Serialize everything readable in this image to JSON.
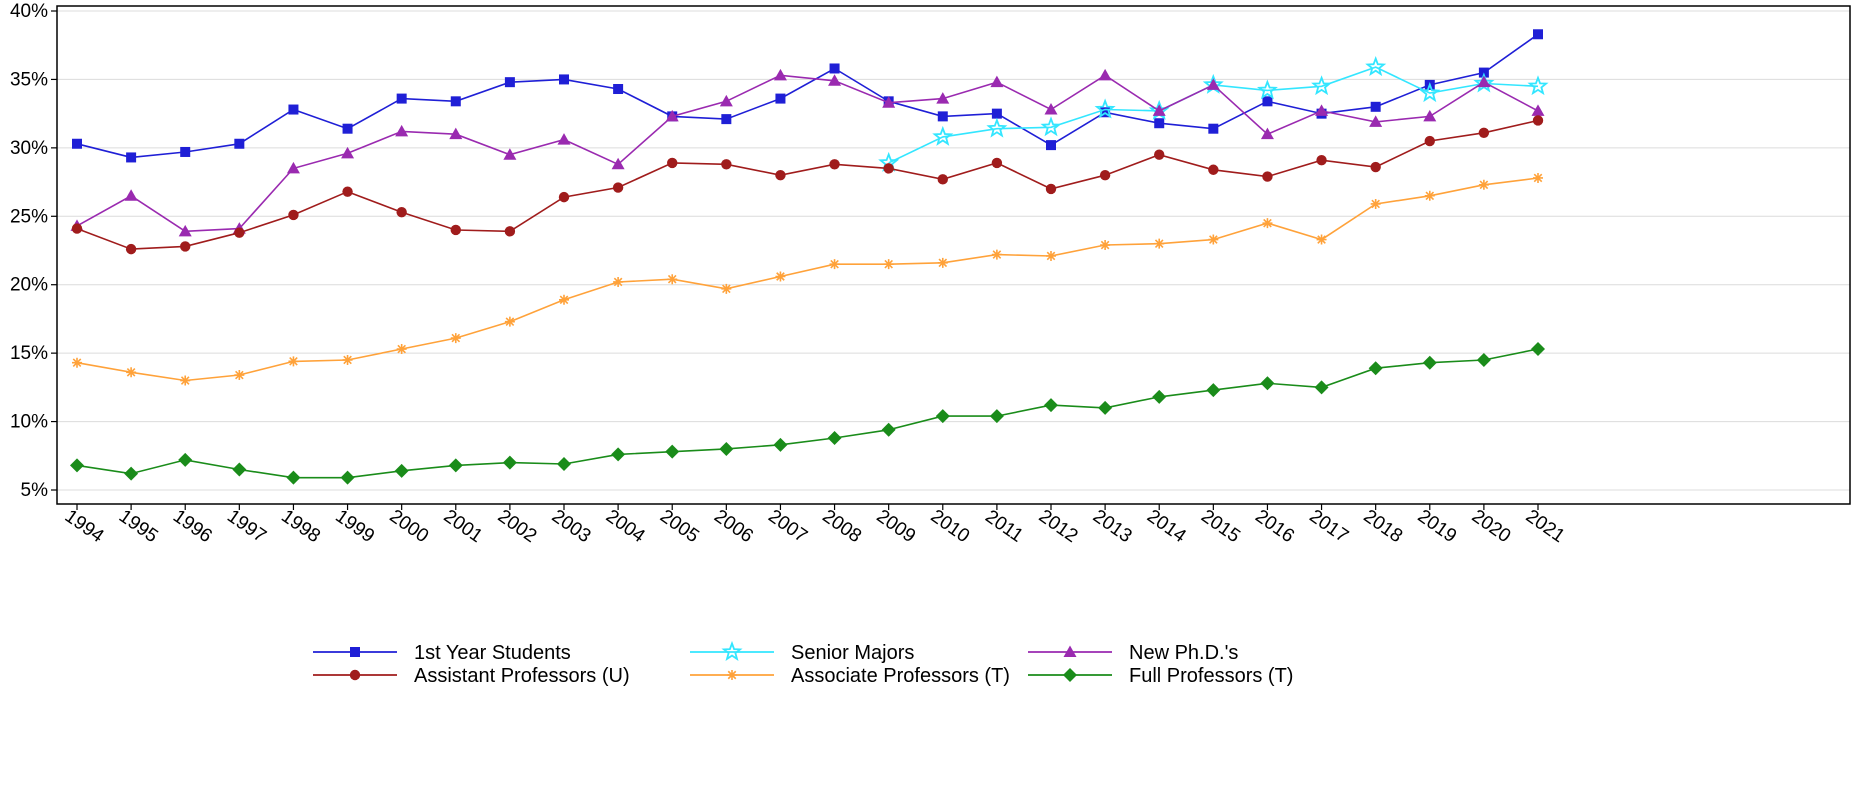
{
  "chart_data": {
    "type": "line",
    "title": "",
    "xlabel": "",
    "ylabel": "",
    "ylim": [
      5,
      40
    ],
    "yticks": [
      "5%",
      "10%",
      "15%",
      "20%",
      "25%",
      "30%",
      "35%",
      "40%"
    ],
    "grid": true,
    "legend_position": "bottom",
    "x": [
      "1994",
      "1995",
      "1996",
      "1997",
      "1998",
      "1999",
      "2000",
      "2001",
      "2002",
      "2003",
      "2004",
      "2005",
      "2006",
      "2007",
      "2008",
      "2009",
      "2010",
      "2011",
      "2012",
      "2013",
      "2014",
      "2015",
      "2016",
      "2017",
      "2018",
      "2019",
      "2020",
      "2021"
    ],
    "series": [
      {
        "name": "1st Year Students",
        "color": "#1f1fd6",
        "marker": "square",
        "values": [
          30.3,
          29.3,
          29.7,
          30.3,
          32.8,
          31.4,
          33.6,
          33.4,
          34.8,
          35.0,
          34.3,
          32.3,
          32.1,
          33.6,
          35.8,
          33.4,
          32.3,
          32.5,
          30.2,
          32.6,
          31.8,
          31.4,
          33.4,
          32.5,
          33.0,
          34.6,
          35.5,
          38.3
        ]
      },
      {
        "name": "Senior Majors",
        "color": "#33e6ff",
        "marker": "star",
        "values": [
          null,
          null,
          null,
          null,
          null,
          null,
          null,
          null,
          null,
          null,
          null,
          null,
          null,
          null,
          null,
          28.9,
          30.8,
          31.4,
          31.5,
          32.8,
          32.7,
          34.6,
          34.2,
          34.5,
          35.9,
          34.0,
          34.7,
          34.5
        ]
      },
      {
        "name": "New Ph.D.'s",
        "color": "#9a2ab0",
        "marker": "triangle",
        "values": [
          24.3,
          26.5,
          23.9,
          24.1,
          28.5,
          29.6,
          31.2,
          31.0,
          29.5,
          30.6,
          28.8,
          32.3,
          33.4,
          35.3,
          34.9,
          33.3,
          33.6,
          34.8,
          32.8,
          35.3,
          32.7,
          34.6,
          31.0,
          32.7,
          31.9,
          32.3,
          34.8,
          32.7
        ]
      },
      {
        "name": "Assistant Professors (U)",
        "color": "#a01c1c",
        "marker": "circle",
        "values": [
          24.1,
          22.6,
          22.8,
          23.8,
          25.1,
          26.8,
          25.3,
          24.0,
          23.9,
          26.4,
          27.1,
          28.9,
          28.8,
          28.0,
          28.8,
          28.5,
          27.7,
          28.9,
          27.0,
          28.0,
          29.5,
          28.4,
          27.9,
          29.1,
          28.6,
          30.5,
          31.1,
          32.0
        ]
      },
      {
        "name": "Associate Professors (T)",
        "color": "#ffa23a",
        "marker": "asterisk",
        "values": [
          14.3,
          13.6,
          13.0,
          13.4,
          14.4,
          14.5,
          15.3,
          16.1,
          17.3,
          18.9,
          20.2,
          20.4,
          19.7,
          20.6,
          21.5,
          21.5,
          21.6,
          22.2,
          22.1,
          22.9,
          23.0,
          23.3,
          24.5,
          23.3,
          25.9,
          26.5,
          27.3,
          27.8
        ]
      },
      {
        "name": "Full Professors (T)",
        "color": "#1a8c1a",
        "marker": "diamond",
        "values": [
          6.8,
          6.2,
          7.2,
          6.5,
          5.9,
          5.9,
          6.4,
          6.8,
          7.0,
          6.9,
          7.6,
          7.8,
          8.0,
          8.3,
          8.8,
          9.4,
          10.4,
          10.4,
          11.2,
          11.0,
          11.8,
          12.3,
          12.8,
          12.5,
          13.9,
          14.3,
          14.5,
          15.3
        ]
      }
    ]
  }
}
